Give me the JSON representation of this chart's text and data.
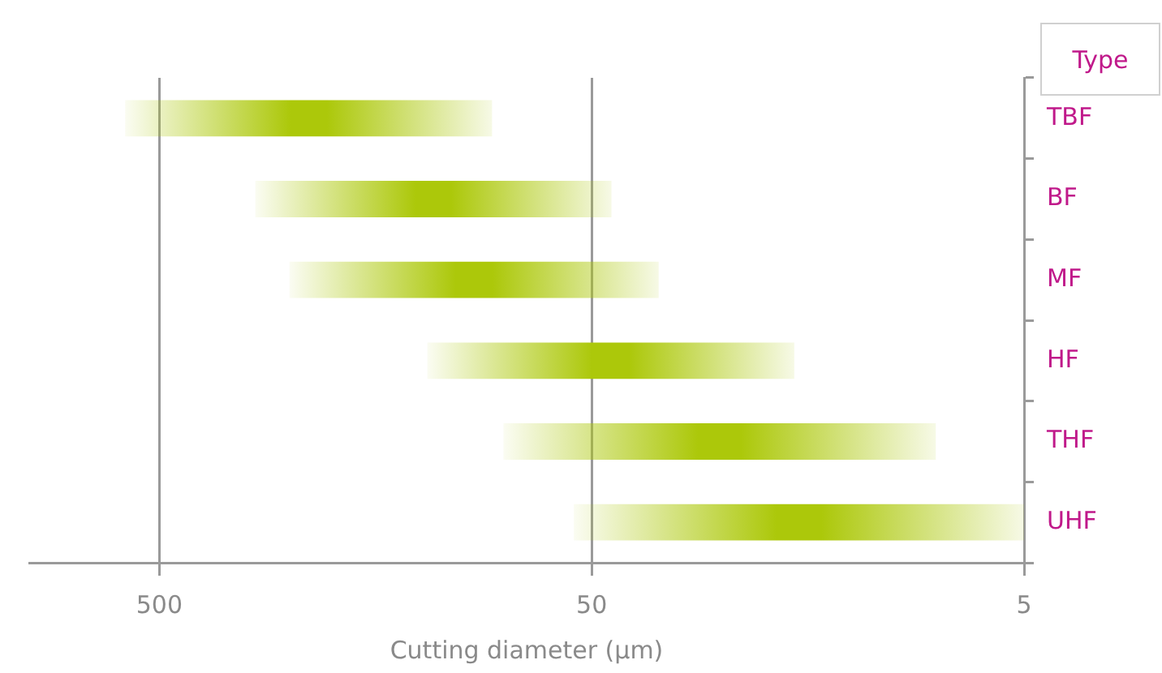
{
  "chart_data": {
    "type": "bar",
    "orientation": "horizontal",
    "log": "x",
    "xlabel": "Cutting diameter (µm)",
    "ylabel": "Type",
    "categories": [
      "TBF",
      "BF",
      "MF",
      "HF",
      "THF",
      "UHF"
    ],
    "base": [
      85,
      45,
      35,
      17,
      8,
      5
    ],
    "values": [
      515,
      255,
      215,
      103,
      72,
      50
    ],
    "color": "#acc80a",
    "xlim": [
      1000,
      5
    ],
    "xticks": [
      500,
      50,
      5
    ],
    "grid": "x",
    "legend": false
  }
}
